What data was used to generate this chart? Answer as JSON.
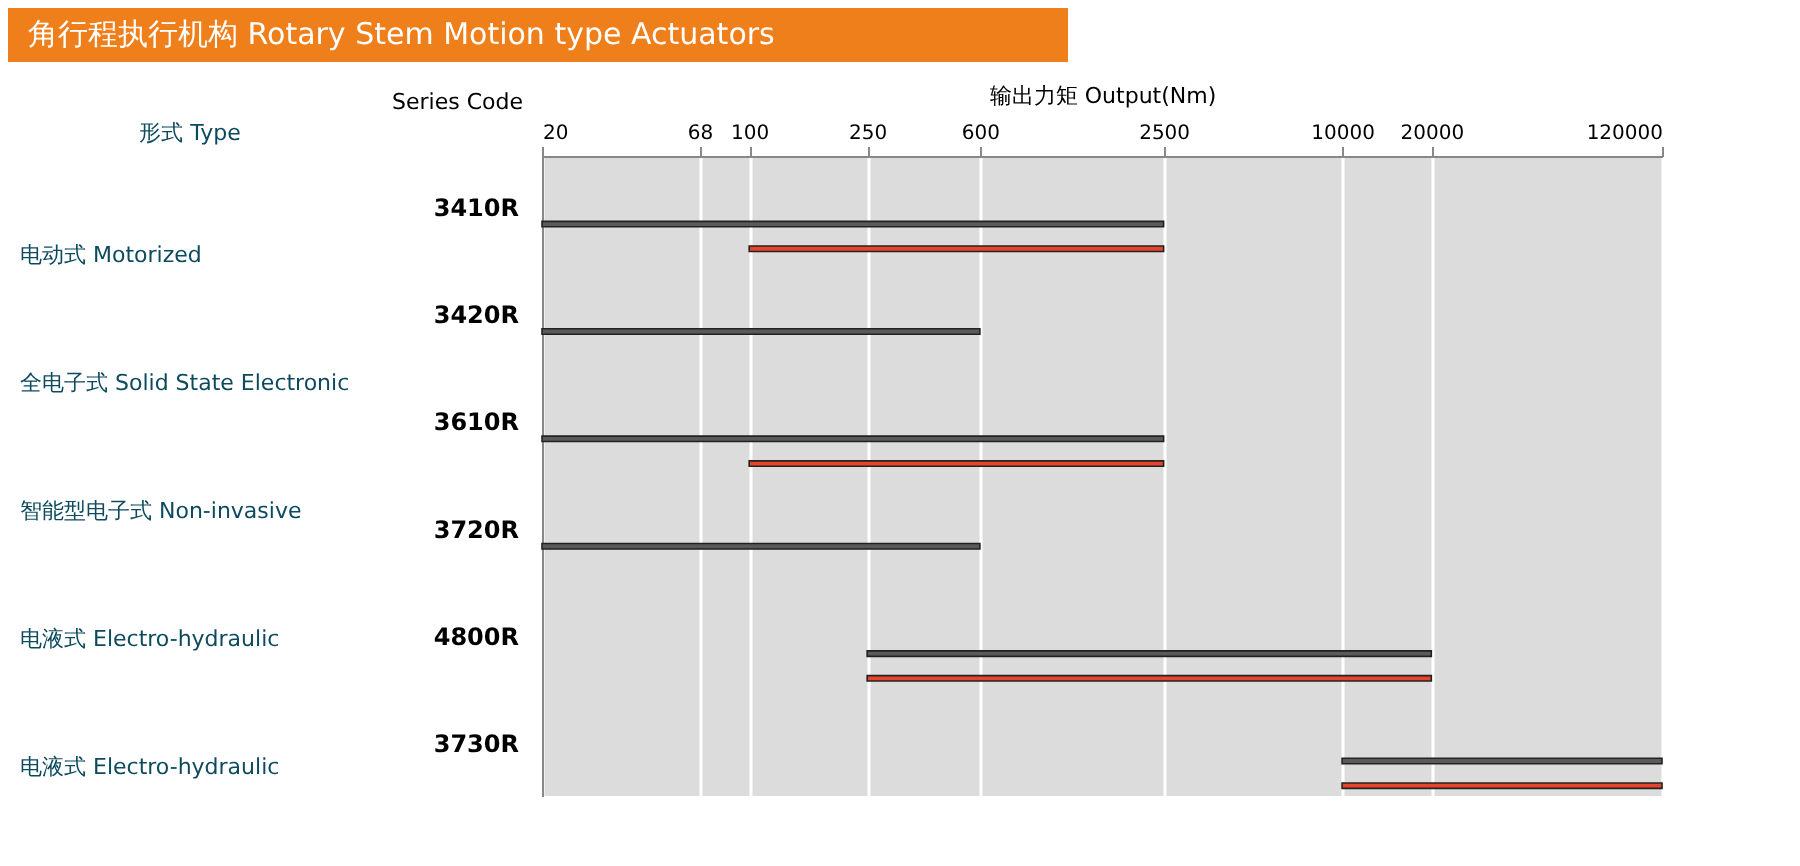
{
  "chart_data": {
    "type": "bar",
    "orientation": "horizontal",
    "title": "角行程执行机构    Rotary Stem Motion type Actuators",
    "xlabel": "输出力矩  Output(Nm)",
    "ylabel": "Series Code",
    "categories": [
      "3410R",
      "3420R",
      "3610R",
      "3720R",
      "4800R",
      "3730R"
    ],
    "series": [
      {
        "color": "#5a5a5a",
        "base": [
          20,
          20,
          20,
          20,
          250,
          10000
        ],
        "values": [
          2480,
          580,
          2480,
          580,
          19750,
          110000
        ]
      },
      {
        "color": "#e8442c",
        "base": [
          100,
          null,
          100,
          null,
          250,
          10000
        ],
        "values": [
          2400,
          null,
          2400,
          null,
          19750,
          110000
        ]
      }
    ],
    "log": "x",
    "xlim": [
      20,
      120000
    ],
    "xticks": [
      20,
      68,
      100,
      250,
      600,
      2500,
      10000,
      20000,
      120000
    ],
    "grid": "x",
    "annotations": [
      "形式  Type",
      "电动式    Motorized",
      "全电子式    Solid State Electronic",
      "智能型电子式  Non-invasive",
      "电液式    Electro-hydraulic",
      "电液式    Electro-hydraulic"
    ]
  }
}
